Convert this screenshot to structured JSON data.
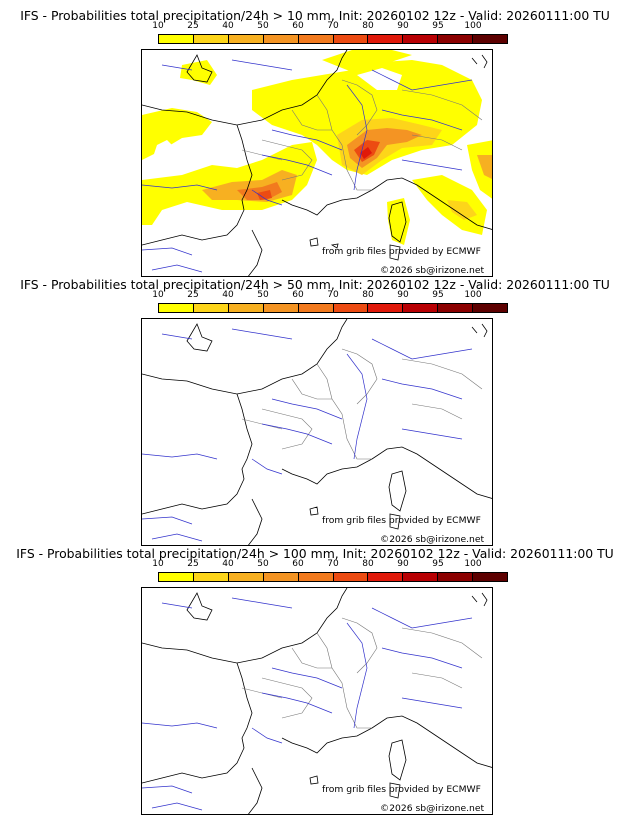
{
  "colorbar": {
    "labels": [
      "10",
      "25",
      "40",
      "50",
      "60",
      "70",
      "80",
      "90",
      "95",
      "100"
    ],
    "colors": [
      "#ffff00",
      "#fdd51a",
      "#f7b021",
      "#f49423",
      "#f27a1e",
      "#ec4b12",
      "#e0190a",
      "#b80003",
      "#8b0000",
      "#5d0000"
    ]
  },
  "panels": [
    {
      "title": "IFS - Probabilities total precipitation/24h > 10 mm, Init: 20260102 12z - Valid: 20260111:00 TU",
      "threshold_mm": 10,
      "credit": "from grib files provided by ECMWF",
      "copyright": "©2026 sb@irizone.net"
    },
    {
      "title": "IFS - Probabilities total precipitation/24h > 50 mm, Init: 20260102 12z - Valid: 20260111:00 TU",
      "threshold_mm": 50,
      "credit": "from grib files provided by ECMWF",
      "copyright": "©2026 sb@irizone.net"
    },
    {
      "title": "IFS - Probabilities total precipitation/24h > 100 mm, Init: 20260102 12z - Valid: 20260111:00 TU",
      "threshold_mm": 100,
      "credit": "from grib files provided by ECMWF",
      "copyright": "©2026 sb@irizone.net"
    }
  ]
}
